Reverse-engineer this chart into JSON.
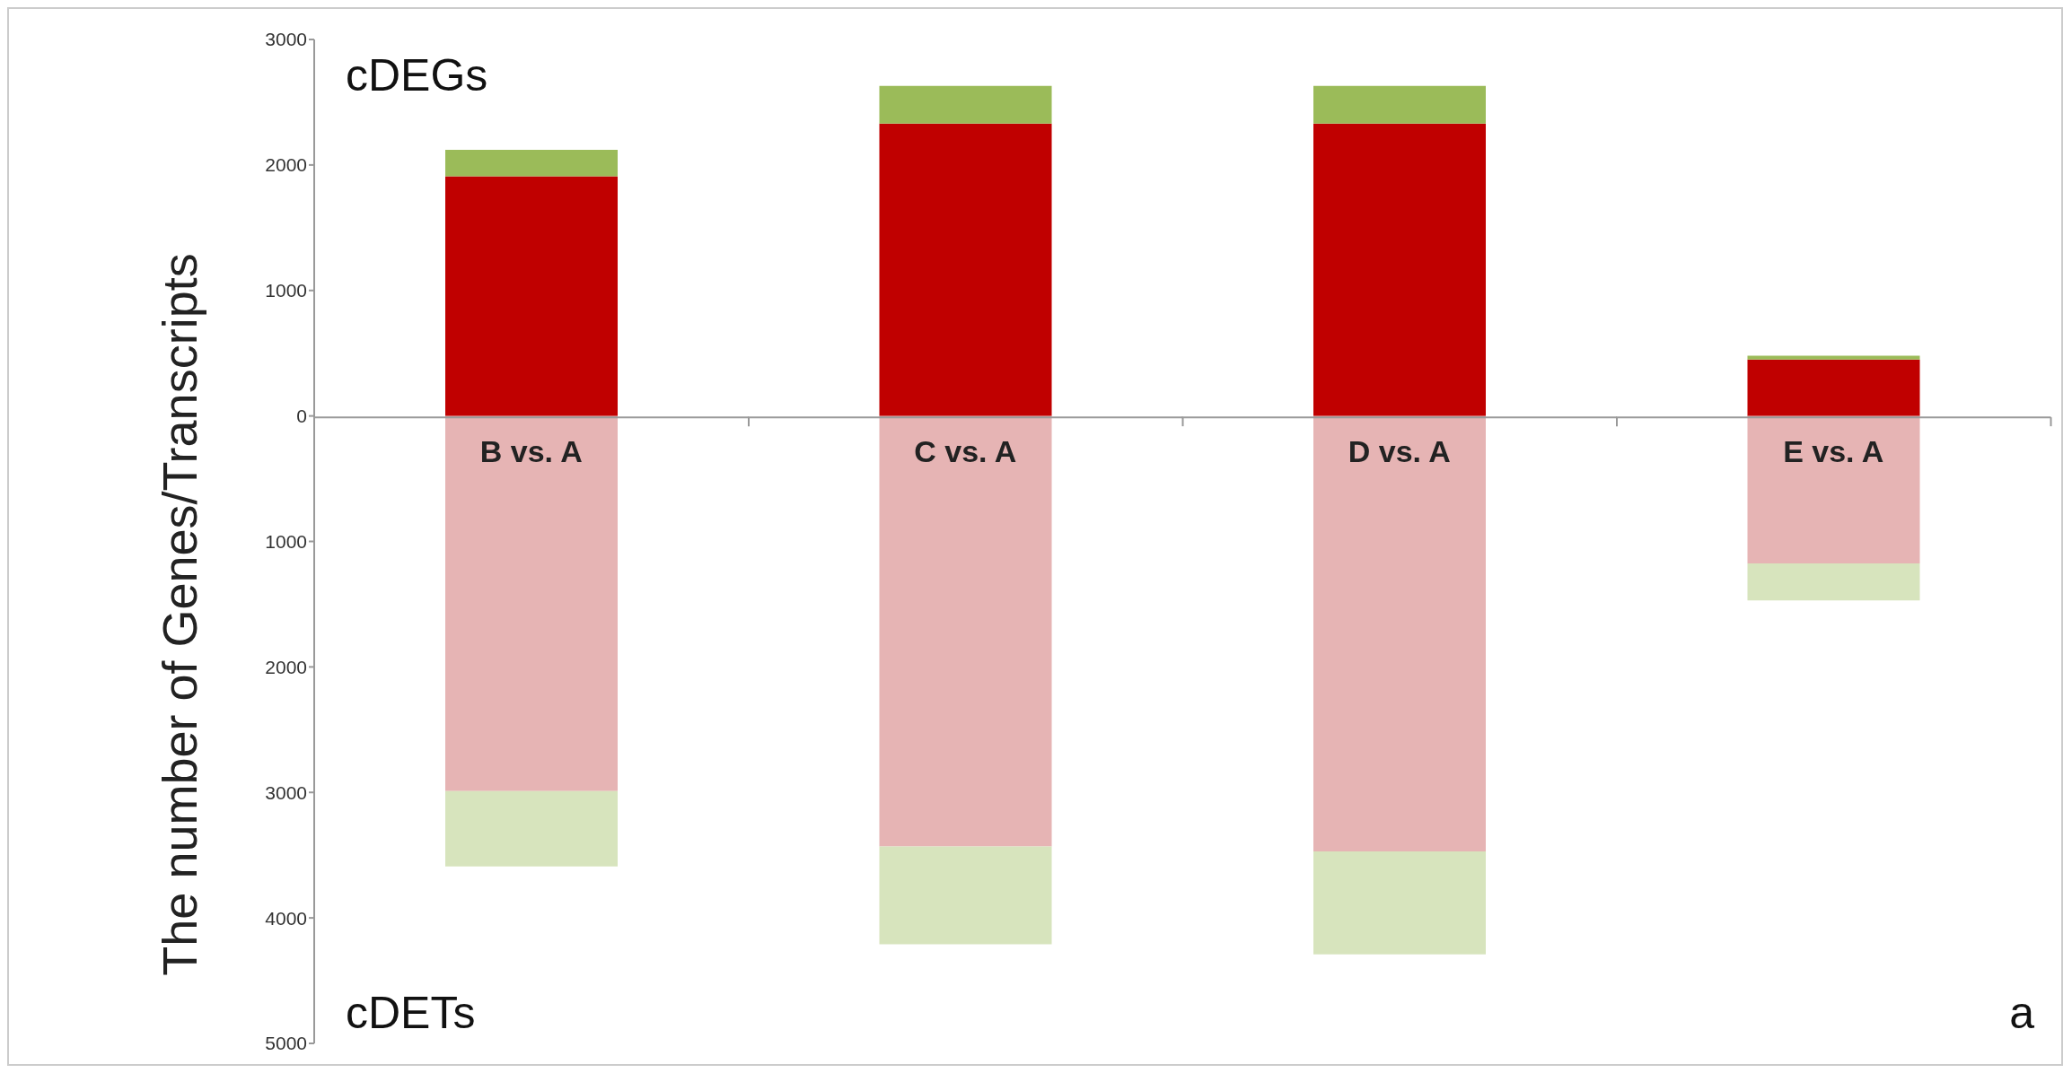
{
  "chart_data": {
    "type": "bar",
    "stacked": true,
    "ylabel": "The number of Genes/Transcripts",
    "categories": [
      "B vs. A",
      "C vs. A",
      "D vs. A",
      "E vs. A"
    ],
    "series": [
      {
        "color": "#c00000",
        "values": [
          1910,
          2330,
          2330,
          450
        ]
      },
      {
        "color": "#9bbb59",
        "values": [
          210,
          300,
          300,
          30
        ]
      },
      {
        "color": "#e6b4b4",
        "values": [
          -2990,
          -3430,
          -3470,
          -1175
        ]
      },
      {
        "color": "#d7e4bd",
        "values": [
          -600,
          -780,
          -820,
          -295
        ]
      }
    ],
    "ylim": [
      -5000,
      3000
    ],
    "yticks": [
      {
        "value": -5000,
        "label": "5000"
      },
      {
        "value": -4000,
        "label": "4000"
      },
      {
        "value": -3000,
        "label": "3000"
      },
      {
        "value": -2000,
        "label": "2000"
      },
      {
        "value": -1000,
        "label": "1000"
      },
      0,
      1000,
      2000,
      3000
    ],
    "annotations": [
      "cDEGs",
      "cDETs",
      "a"
    ],
    "grid": false,
    "legend": false
  }
}
